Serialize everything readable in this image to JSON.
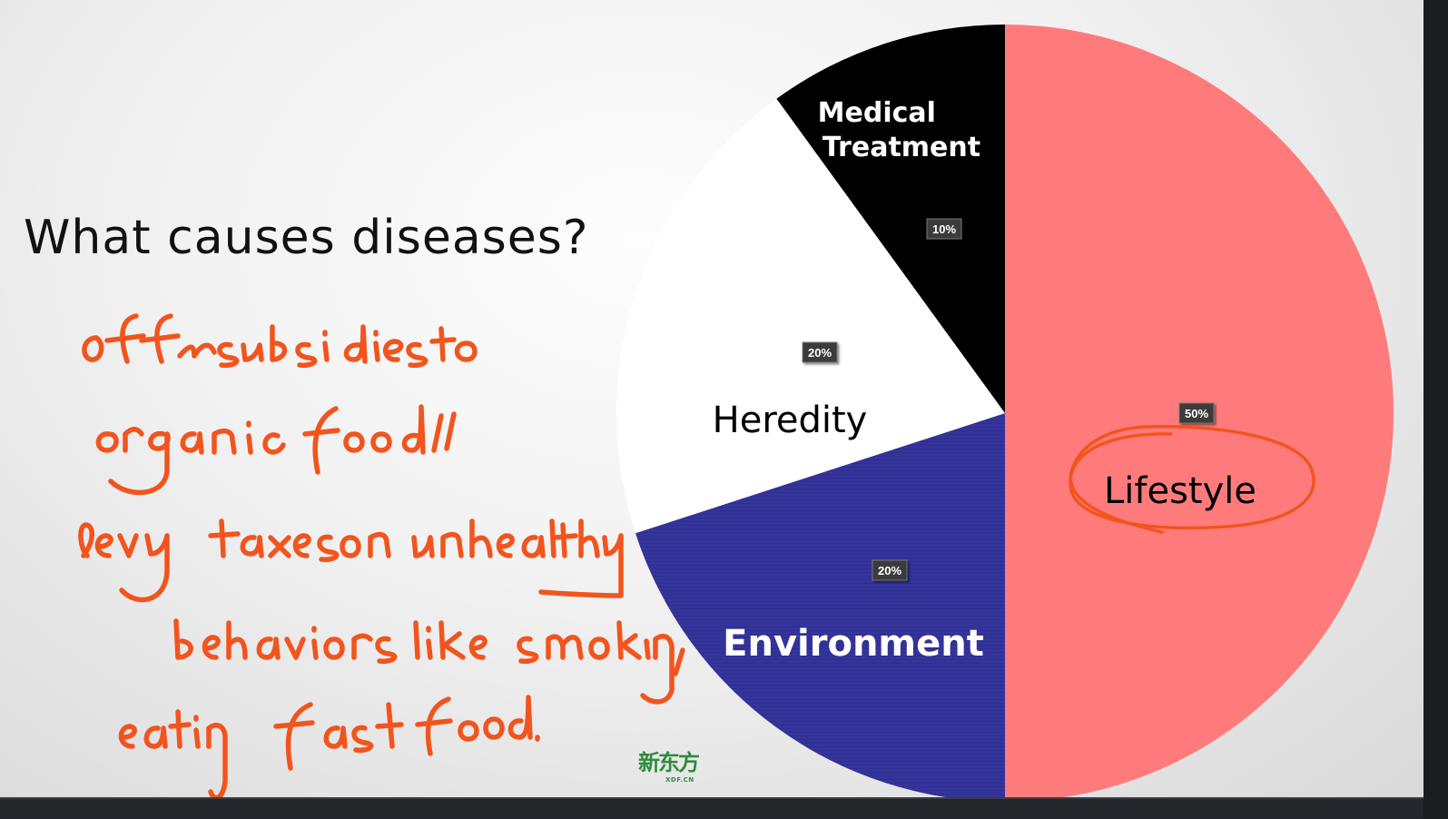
{
  "slide": {
    "question": "What causes diseases?",
    "logo": "新东方",
    "logo_sub": "XDF.CN"
  },
  "chart_data": {
    "type": "pie",
    "title": "",
    "slices": [
      {
        "label": "Lifestyle",
        "value": 50,
        "value_label": "50%",
        "color": "#ff7b7b",
        "label_color": "#000000"
      },
      {
        "label": "Environment",
        "value": 20,
        "value_label": "20%",
        "color": "#33339a",
        "label_color": "#ffffff"
      },
      {
        "label": "Heredity",
        "value": 20,
        "value_label": "20%",
        "color": "#ffffff",
        "label_color": "#000000"
      },
      {
        "label": "Medical Treatment",
        "value": 10,
        "value_label": "10%",
        "color": "#000000",
        "label_color": "#ffffff"
      }
    ],
    "start_angle": "12 o'clock, clockwise",
    "legend": "none",
    "annotation": "Lifestyle circled in orange ink"
  },
  "handwriting": {
    "color": "#f2541e",
    "lines": [
      "offer subsidies to",
      "organic food //",
      "levy taxes on unhealthy",
      "behaviors like smoking,",
      "eating fast food."
    ]
  }
}
